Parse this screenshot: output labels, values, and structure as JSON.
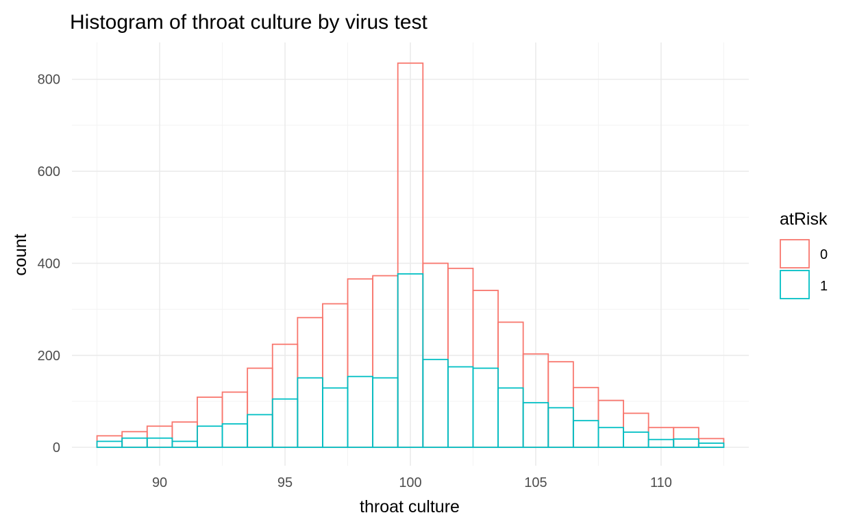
{
  "chart_data": {
    "type": "bar",
    "title": "Histogram of throat culture by virus test",
    "xlabel": "throat culture",
    "ylabel": "count",
    "xlim": [
      86.5,
      113.5
    ],
    "ylim": [
      -40,
      880
    ],
    "x_ticks": [
      90,
      95,
      100,
      105,
      110
    ],
    "y_ticks": [
      0,
      200,
      400,
      600,
      800
    ],
    "bin_width": 1,
    "bin_centers": [
      88,
      89,
      90,
      91,
      92,
      93,
      94,
      95,
      96,
      97,
      98,
      99,
      100,
      101,
      102,
      103,
      104,
      105,
      106,
      107,
      108,
      109,
      110,
      111,
      112
    ],
    "series": [
      {
        "name": "0",
        "color": "#F8766D",
        "values": [
          25,
          34,
          46,
          55,
          109,
          120,
          172,
          224,
          282,
          312,
          366,
          373,
          835,
          400,
          389,
          341,
          272,
          203,
          186,
          130,
          102,
          74,
          43,
          43,
          19
        ]
      },
      {
        "name": "1",
        "color": "#00BFC4",
        "values": [
          13,
          20,
          20,
          13,
          46,
          51,
          71,
          105,
          151,
          129,
          154,
          151,
          377,
          191,
          175,
          172,
          129,
          97,
          86,
          58,
          43,
          33,
          17,
          18,
          9
        ]
      }
    ],
    "legend": {
      "title": "atRisk",
      "position": "right"
    },
    "grid": true
  }
}
